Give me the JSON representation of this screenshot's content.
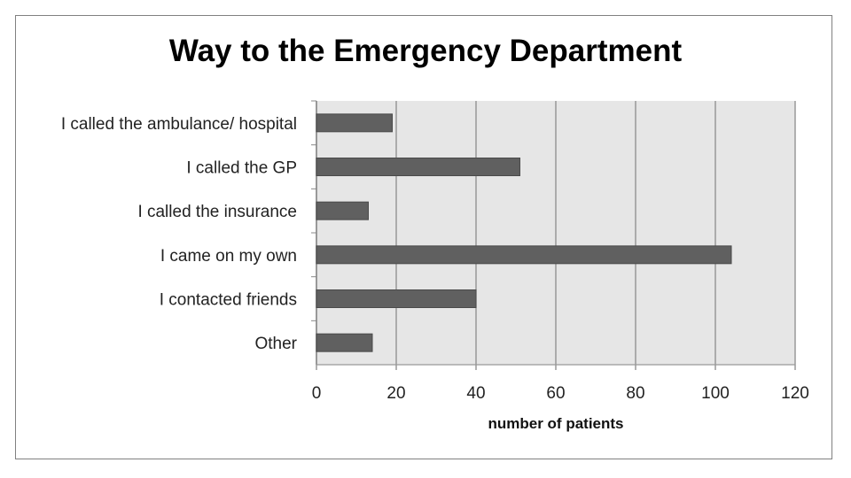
{
  "chart_data": {
    "type": "bar",
    "orientation": "horizontal",
    "title": "Way to the Emergency Department",
    "xlabel": "number of patients",
    "ylabel": "",
    "categories": [
      "I called the ambulance/ hospital",
      "I called the GP",
      "I called the insurance",
      "I came on my own",
      "I contacted friends",
      "Other"
    ],
    "values": [
      19,
      51,
      13,
      104,
      40,
      14
    ],
    "xlim": [
      0,
      120
    ],
    "xticks": [
      0,
      20,
      40,
      60,
      80,
      100,
      120
    ],
    "grid": true,
    "legend": "none",
    "colors": {
      "bar": "#606060",
      "plot_bg": "#e6e6e6",
      "grid": "#8c8c8c"
    }
  }
}
